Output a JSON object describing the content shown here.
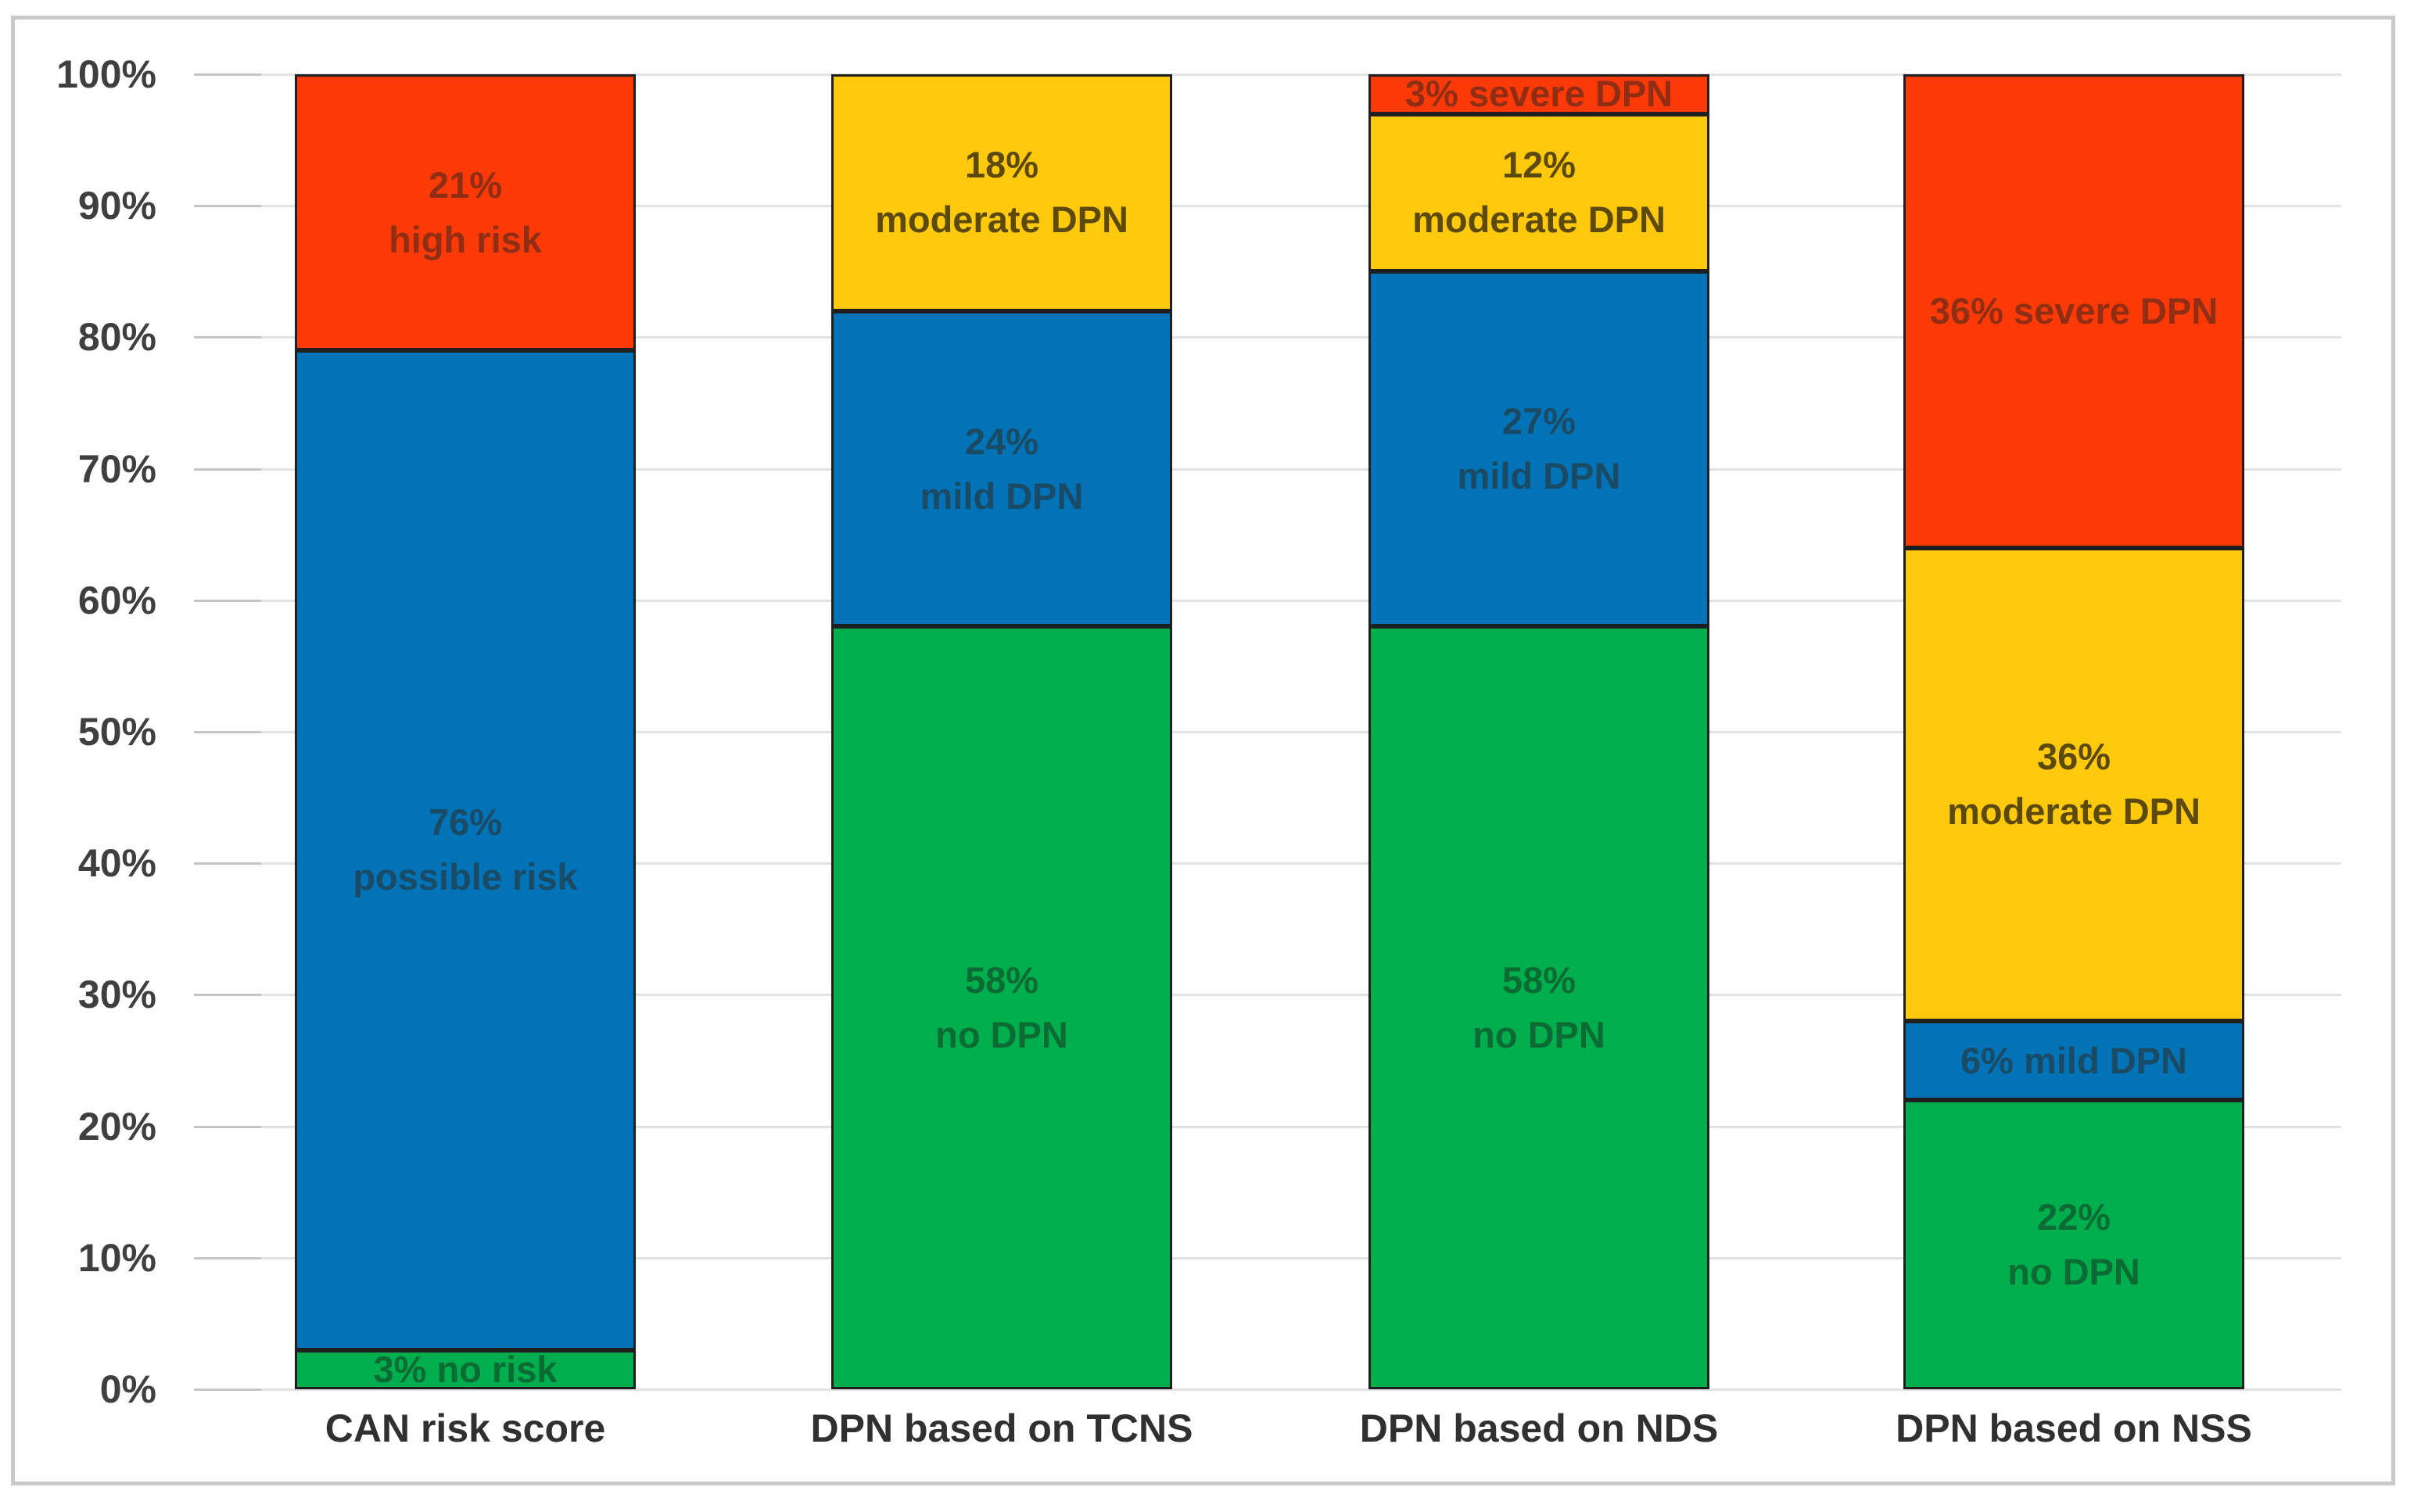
{
  "chart_data": {
    "type": "bar",
    "variant": "stacked-100-percent",
    "title": "",
    "legend": "none",
    "categories": [
      "CAN risk score",
      "DPN based on TCNS",
      "DPN based on NDS",
      "DPN based on NSS"
    ],
    "y_axis": {
      "min": 0,
      "max": 100,
      "tick_step": 10,
      "tick_labels": [
        "0%",
        "10%",
        "20%",
        "30%",
        "40%",
        "50%",
        "60%",
        "70%",
        "80%",
        "90%",
        "100%"
      ],
      "gridlines": true
    },
    "palette": {
      "green": "#00ae4e",
      "blue": "#0273b7",
      "yellow": "#ffc90d",
      "red": "#fb3a07"
    },
    "label_palette": {
      "green": "#0b6b33",
      "blue": "#1b4a64",
      "yellow": "#5c4a0d",
      "red": "#8f2e14"
    },
    "bars": [
      {
        "category": "CAN risk score",
        "segments": [
          {
            "value": 3,
            "color": "green",
            "label_lines": [
              "3% no risk"
            ]
          },
          {
            "value": 76,
            "color": "blue",
            "label_lines": [
              "76%",
              "possible risk"
            ]
          },
          {
            "value": 21,
            "color": "red",
            "label_lines": [
              "21%",
              "high risk"
            ]
          }
        ]
      },
      {
        "category": "DPN based on TCNS",
        "segments": [
          {
            "value": 58,
            "color": "green",
            "label_lines": [
              "58%",
              "no DPN"
            ]
          },
          {
            "value": 24,
            "color": "blue",
            "label_lines": [
              "24%",
              "mild DPN"
            ]
          },
          {
            "value": 18,
            "color": "yellow",
            "label_lines": [
              "18%",
              "moderate DPN"
            ]
          }
        ]
      },
      {
        "category": "DPN based on NDS",
        "segments": [
          {
            "value": 58,
            "color": "green",
            "label_lines": [
              "58%",
              "no DPN"
            ]
          },
          {
            "value": 27,
            "color": "blue",
            "label_lines": [
              "27%",
              "mild DPN"
            ]
          },
          {
            "value": 12,
            "color": "yellow",
            "label_lines": [
              "12%",
              "moderate DPN"
            ]
          },
          {
            "value": 3,
            "color": "red",
            "label_lines": [
              "3% severe DPN"
            ]
          }
        ]
      },
      {
        "category": "DPN based on NSS",
        "segments": [
          {
            "value": 22,
            "color": "green",
            "label_lines": [
              "22%",
              "no DPN"
            ]
          },
          {
            "value": 6,
            "color": "blue",
            "label_lines": [
              "6% mild DPN"
            ]
          },
          {
            "value": 36,
            "color": "yellow",
            "label_lines": [
              "36%",
              "moderate DPN"
            ]
          },
          {
            "value": 36,
            "color": "red",
            "label_lines": [
              "36% severe DPN"
            ]
          }
        ]
      }
    ]
  }
}
